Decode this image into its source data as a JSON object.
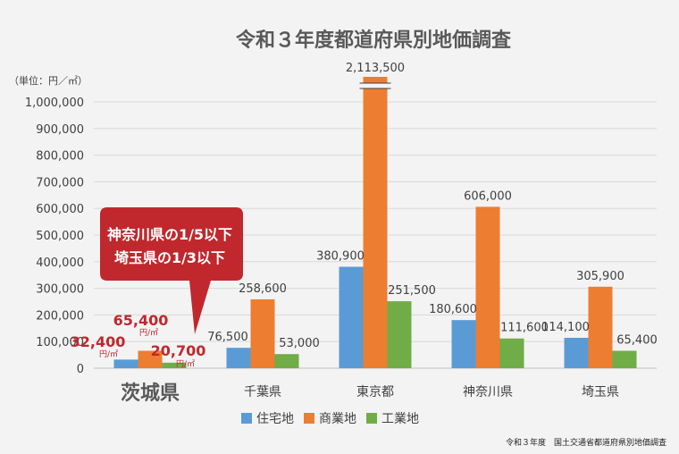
{
  "chart_data": {
    "type": "bar",
    "title": "令和３年度都道府県別地価調査",
    "unit_label": "（単位：円／㎡）",
    "categories": [
      "茨城県",
      "千葉県",
      "東京都",
      "神奈川県",
      "埼玉県"
    ],
    "series": [
      {
        "name": "住宅地",
        "color": "#5b9bd5",
        "values": [
          32400,
          76500,
          380900,
          180600,
          114100
        ]
      },
      {
        "name": "商業地",
        "color": "#ed7d31",
        "values": [
          65400,
          258600,
          2113500,
          606000,
          305900
        ]
      },
      {
        "name": "工業地",
        "color": "#70ad47",
        "values": [
          20700,
          53000,
          251500,
          111600,
          65400
        ]
      }
    ],
    "data_labels": [
      [
        "32,400",
        "65,400",
        "20,700"
      ],
      [
        "76,500",
        "258,600",
        "53,000"
      ],
      [
        "380,900",
        "2,113,500",
        "251,500"
      ],
      [
        "180,600",
        "606,000",
        "111,600"
      ],
      [
        "114,100",
        "305,900",
        "65,400"
      ]
    ],
    "highlight_unit": "円/㎡",
    "ylim": [
      0,
      1000000
    ],
    "yticks": [
      "0",
      "100,000",
      "200,000",
      "300,000",
      "400,000",
      "500,000",
      "600,000",
      "700,000",
      "800,000",
      "900,000",
      "1,000,000"
    ],
    "axis_break": true,
    "legend_position": "bottom",
    "grid": true,
    "callout": {
      "line1": "神奈川県の1/5以下",
      "line2": "埼玉県の1/3以下",
      "color": "#c0282d"
    },
    "source": "令和３年度　国土交通省都道府県別地価調査"
  }
}
